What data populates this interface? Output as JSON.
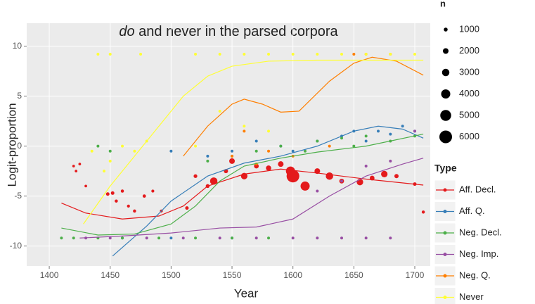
{
  "chart_data": {
    "type": "scatter",
    "title_italic": "do",
    "title": "and never in the parsed corpora",
    "x_label": "Year",
    "y_label": "Logit-proportion",
    "xlim": [
      1381.5,
      1712.7
    ],
    "ylim": [
      -12,
      12.3
    ],
    "xticks": [
      1400,
      1450,
      1500,
      1550,
      1600,
      1650,
      1700
    ],
    "yticks": [
      -10,
      -5,
      0,
      5,
      10
    ],
    "grid": true,
    "legend_title": "Type",
    "size_legend": {
      "title": "n",
      "values": [
        1000,
        2000,
        3000,
        4000,
        5000,
        6000
      ]
    },
    "series": [
      {
        "name": "Aff. Decl.",
        "color": "#e41a1c",
        "x": [
          1420,
          1422,
          1425,
          1430,
          1448,
          1452,
          1455,
          1460,
          1465,
          1470,
          1478,
          1485,
          1492,
          1513,
          1520,
          1530,
          1535,
          1545,
          1550,
          1560,
          1570,
          1580,
          1590,
          1598,
          1600,
          1610,
          1620,
          1630,
          1640,
          1655,
          1665,
          1675,
          1685,
          1700,
          1707
        ],
        "values": [
          -2,
          -2.5,
          -1.8,
          -4,
          -4.8,
          -4.7,
          -5.5,
          -4.5,
          -6,
          -6.5,
          -5,
          -4.5,
          -6.5,
          -6.2,
          -3,
          -4,
          -3.5,
          -2.5,
          -1.5,
          -3,
          -2,
          -2.2,
          -1.8,
          -2.5,
          -3,
          -4,
          -2.5,
          -3,
          -3.5,
          -3.6,
          -3.2,
          -2.8,
          -3,
          -3.8,
          -6.6
        ],
        "sizes": [
          300,
          300,
          300,
          300,
          800,
          800,
          600,
          600,
          500,
          600,
          700,
          500,
          500,
          800,
          900,
          1000,
          3000,
          1200,
          2000,
          2500,
          1500,
          1800,
          2000,
          4000,
          6000,
          4000,
          2000,
          3000,
          1500,
          2500,
          1500,
          2500,
          1200,
          800,
          600
        ],
        "smooth_x": [
          1410,
          1430,
          1460,
          1490,
          1510,
          1530,
          1560,
          1590,
          1620,
          1660,
          1707
        ],
        "smooth": [
          -5.7,
          -6.7,
          -7.3,
          -7,
          -6,
          -4,
          -2.8,
          -2.3,
          -2.7,
          -3.3,
          -3.9
        ]
      },
      {
        "name": "Aff. Q.",
        "color": "#377eb8",
        "x": [
          1460,
          1500,
          1550,
          1500,
          1530,
          1550,
          1570,
          1590,
          1600,
          1620,
          1640,
          1650,
          1660,
          1670,
          1680,
          1690,
          1700
        ],
        "values": [
          -9.2,
          -9.2,
          -9.2,
          -0.5,
          -1,
          -0.5,
          0.5,
          0,
          -0.5,
          0.5,
          1,
          1.5,
          0.5,
          1.5,
          1.2,
          2,
          1.5
        ],
        "smooth_x": [
          1452,
          1480,
          1500,
          1530,
          1560,
          1590,
          1620,
          1650,
          1670,
          1690,
          1707
        ],
        "smooth": [
          -11,
          -8,
          -5.5,
          -3,
          -1.7,
          -1,
          0,
          1.5,
          2,
          1.7,
          0.8
        ]
      },
      {
        "name": "Neg. Decl.",
        "color": "#4daf4a",
        "x": [
          1410,
          1420,
          1440,
          1460,
          1490,
          1520,
          1550,
          1580,
          1440,
          1450,
          1530,
          1550,
          1570,
          1590,
          1610,
          1620,
          1640,
          1650,
          1660,
          1680,
          1700
        ],
        "values": [
          -9.2,
          -9.2,
          -9.2,
          -9.2,
          -9.2,
          -9.2,
          -9.2,
          -9.2,
          0,
          -0.5,
          -1.5,
          -1,
          -0.5,
          0,
          -0.5,
          0.5,
          0.8,
          0,
          1,
          0.5,
          1
        ],
        "smooth_x": [
          1410,
          1440,
          1470,
          1500,
          1520,
          1540,
          1560,
          1590,
          1620,
          1660,
          1707
        ],
        "smooth": [
          -8.2,
          -8.9,
          -8.8,
          -7.8,
          -6,
          -3.5,
          -2,
          -1.2,
          -0.6,
          0,
          1.2
        ]
      },
      {
        "name": "Neg. Imp.",
        "color": "#984ea3",
        "x": [
          1430,
          1450,
          1480,
          1510,
          1540,
          1570,
          1600,
          1620,
          1640,
          1660,
          1680,
          1620,
          1640,
          1660,
          1680,
          1700
        ],
        "values": [
          -9.2,
          -9.2,
          -9.2,
          -9.2,
          -9.2,
          -9.2,
          -9.2,
          -9.2,
          -9.2,
          -9.2,
          -9.2,
          -4.5,
          -3.5,
          -2,
          -1.5,
          1.5
        ],
        "smooth_x": [
          1425,
          1460,
          1500,
          1540,
          1570,
          1600,
          1630,
          1660,
          1690,
          1707
        ],
        "smooth": [
          -9.2,
          -9,
          -8.7,
          -8.2,
          -8.1,
          -7.3,
          -5,
          -3,
          -1.8,
          -1.2
        ]
      },
      {
        "name": "Neg. Q.",
        "color": "#ff7f00",
        "x": [
          1550,
          1560,
          1570,
          1580,
          1600,
          1630,
          1650,
          1660,
          1680
        ],
        "values": [
          -1,
          1.5,
          -1.8,
          -0.5,
          -1,
          0,
          9.2,
          9.2,
          9.2
        ],
        "smooth_x": [
          1510,
          1530,
          1550,
          1560,
          1575,
          1590,
          1605,
          1630,
          1650,
          1665,
          1685,
          1707
        ],
        "smooth": [
          -1,
          2,
          4.2,
          4.7,
          4.2,
          3.4,
          3.5,
          6.5,
          8.3,
          8.9,
          8.5,
          7.1
        ]
      },
      {
        "name": "Never",
        "color": "#ffff33",
        "x": [
          1440,
          1450,
          1475,
          1520,
          1540,
          1560,
          1580,
          1600,
          1620,
          1640,
          1660,
          1680,
          1700,
          1435,
          1445,
          1450,
          1460,
          1470,
          1480,
          1520,
          1540,
          1560,
          1580
        ],
        "values": [
          9.2,
          9.2,
          9.2,
          9.2,
          9.2,
          9.2,
          9.2,
          9.2,
          9.2,
          9.2,
          9.2,
          9.2,
          9.2,
          -0.5,
          -2.5,
          -1.5,
          0,
          -0.5,
          0.5,
          0,
          3.5,
          2,
          1.5
        ],
        "smooth_x": [
          1428,
          1450,
          1470,
          1490,
          1510,
          1530,
          1550,
          1580,
          1620,
          1660,
          1707
        ],
        "smooth": [
          -7.8,
          -4,
          -1,
          2,
          5,
          7,
          8,
          8.5,
          8.6,
          8.6,
          8.6
        ]
      }
    ]
  }
}
